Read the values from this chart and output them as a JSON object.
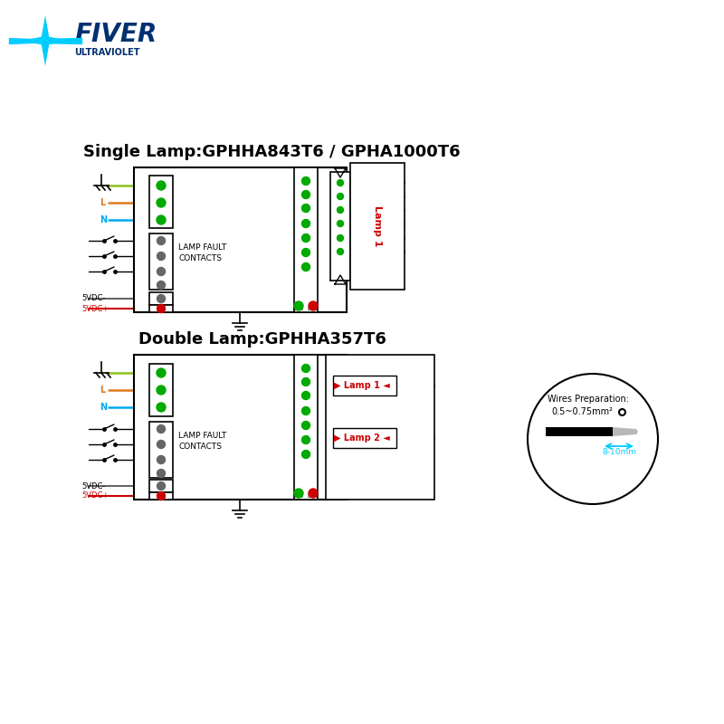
{
  "single_lamp_title": "Single Lamp:GPHHA843T6 / GPHA1000T6",
  "double_lamp_title": "Double Lamp:GPHHA357T6",
  "logo_text": "FIVER",
  "logo_sub": "ULTRAVIOLET",
  "wire_ground": "#90c020",
  "wire_L": "#e07820",
  "wire_N": "#00aaee",
  "wire_gray": "#666666",
  "wire_red": "#cc0000",
  "green": "#00aa00",
  "red": "#cc0000",
  "cyan": "#00ccff",
  "navy": "#003070"
}
